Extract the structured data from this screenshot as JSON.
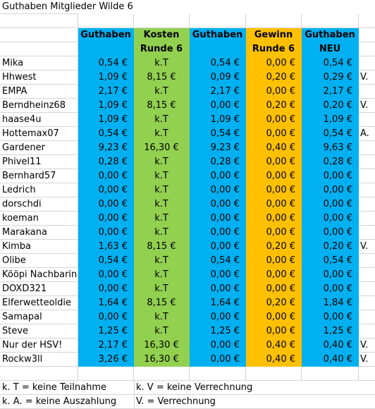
{
  "title": "Guthaben Mitglieder Wilde 6",
  "headers": {
    "row1": [
      "Guthaben",
      "Kosten",
      "Guthaben",
      "Gewinn",
      "Guthaben"
    ],
    "row2": [
      "",
      "Runde 6",
      "",
      "Runde 6",
      "NEU"
    ]
  },
  "rows": [
    [
      "Mika",
      "0,54 €",
      "k.T",
      "0,54 €",
      "0,00 €",
      "0,54 €",
      ""
    ],
    [
      "Hhwest",
      "1,09 €",
      "8,15 €",
      "0,09 €",
      "0,20 €",
      "0,29 €",
      "V."
    ],
    [
      "EMPA",
      "2,17 €",
      "k.T",
      "2,17 €",
      "0,00 €",
      "2,17 €",
      ""
    ],
    [
      "Berndheinz68",
      "1,09 €",
      "8,15 €",
      "0,00 €",
      "0,20 €",
      "0,20 €",
      "V."
    ],
    [
      "haase4u",
      "1,09 €",
      "k.T",
      "1,09 €",
      "0,00 €",
      "1,09 €",
      ""
    ],
    [
      "Hottemax07",
      "0,54 €",
      "k.T",
      "0,54 €",
      "0,00 €",
      "0,54 €",
      "A."
    ],
    [
      "Gardener",
      "9,23 €",
      "16,30 €",
      "9,23 €",
      "0,40 €",
      "9,63 €",
      ""
    ],
    [
      "Phivel11",
      "0,28 €",
      "k.T",
      "0,28 €",
      "0,00 €",
      "0,28 €",
      ""
    ],
    [
      "Bernhard57",
      "0,00 €",
      "k.T",
      "0,00 €",
      "0,00 €",
      "0,00 €",
      ""
    ],
    [
      "Ledrich",
      "0,00 €",
      "k.T",
      "0,00 €",
      "0,00 €",
      "0,00 €",
      ""
    ],
    [
      "dorschdi",
      "0,00 €",
      "k.T",
      "0,00 €",
      "0,00 €",
      "0,00 €",
      ""
    ],
    [
      "koeman",
      "0,00 €",
      "k.T",
      "0,00 €",
      "0,00 €",
      "0,00 €",
      ""
    ],
    [
      "Marakana",
      "0,00 €",
      "k.T",
      "0,00 €",
      "0,00 €",
      "0,00 €",
      ""
    ],
    [
      "Kimba",
      "1,63 €",
      "8,15 €",
      "0,00 €",
      "0,20 €",
      "0,20 €",
      "V."
    ],
    [
      "Olibe",
      "0,54 €",
      "k.T",
      "0,54 €",
      "0,00 €",
      "0,54 €",
      ""
    ],
    [
      "Kööpi Nachbarin",
      "0,00 €",
      "k.T",
      "0,00 €",
      "0,00 €",
      "0,00 €",
      ""
    ],
    [
      "DOXD321",
      "0,00 €",
      "k.T",
      "0,00 €",
      "0,00 €",
      "0,00 €",
      ""
    ],
    [
      "Elferwetteoldie",
      "1,64 €",
      "8,15 €",
      "1,64 €",
      "0,20 €",
      "1,84 €",
      ""
    ],
    [
      "Samapal",
      "0,00 €",
      "k.T",
      "0,00 €",
      "0,00 €",
      "0,00 €",
      ""
    ],
    [
      "Steve",
      "1,25 €",
      "k.T",
      "1,25 €",
      "0,00 €",
      "1,25 €",
      ""
    ],
    [
      "Nur der HSV!",
      "2,17 €",
      "16,30 €",
      "0,00 €",
      "0,40 €",
      "0,40 €",
      "V."
    ],
    [
      "Rockw3ll",
      "3,26 €",
      "16,30 €",
      "0,00 €",
      "0,40 €",
      "0,40 €",
      "V."
    ]
  ],
  "legend": [
    [
      "k. T = keine Teilnahme",
      "k. V = keine Verrechnung"
    ],
    [
      "k. A. = keine Auszahlung",
      "V. = Verrechnung"
    ]
  ],
  "colors": {
    "guthaben": "#00b0f0",
    "kosten": "#92d050",
    "gewinn": "#ffc000",
    "grid": "#d4d4d4"
  }
}
